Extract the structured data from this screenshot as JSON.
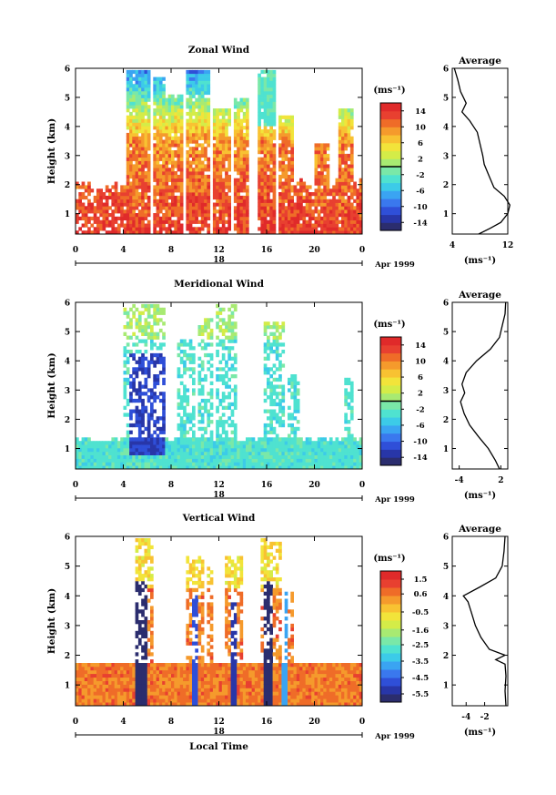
{
  "chart_data": [
    {
      "type": "heatmap",
      "title": "Zonal Wind",
      "xlabel": "",
      "ylabel": "Height (km)",
      "xlim": [
        0,
        24
      ],
      "ylim": [
        0.3,
        6
      ],
      "xticks": [
        "0",
        "4",
        "8",
        "12",
        "16",
        "20",
        "0"
      ],
      "yticks": [
        "1",
        "2",
        "3",
        "4",
        "5",
        "6"
      ],
      "date_label": "18",
      "month_label": "Apr 1999",
      "colorbar": {
        "unit": "(ms⁻¹)",
        "ticks": [
          "14",
          "10",
          "6",
          "2",
          "-2",
          "-6",
          "-10",
          "-14"
        ],
        "range": [
          -16,
          16
        ],
        "marker_value": 0
      },
      "profile": {
        "title": "Average",
        "xlabel": "(ms⁻¹)",
        "xticks": [
          "4",
          "12"
        ],
        "xlim": [
          4,
          12
        ],
        "points": [
          [
            7.8,
            0.3
          ],
          [
            9.5,
            0.5
          ],
          [
            11,
            0.7
          ],
          [
            12,
            1.0
          ],
          [
            12.3,
            1.3
          ],
          [
            11.5,
            1.6
          ],
          [
            10,
            1.9
          ],
          [
            9.3,
            2.3
          ],
          [
            8.6,
            2.7
          ],
          [
            8.4,
            3.0
          ],
          [
            8.0,
            3.4
          ],
          [
            7.6,
            3.8
          ],
          [
            6.5,
            4.2
          ],
          [
            5.4,
            4.5
          ],
          [
            6.0,
            4.8
          ],
          [
            5.2,
            5.2
          ],
          [
            4.8,
            5.6
          ],
          [
            4.3,
            6.0
          ]
        ]
      }
    },
    {
      "type": "heatmap",
      "title": "Meridional Wind",
      "xlabel": "",
      "ylabel": "Height (km)",
      "xlim": [
        0,
        24
      ],
      "ylim": [
        0.3,
        6
      ],
      "xticks": [
        "0",
        "4",
        "8",
        "12",
        "16",
        "20",
        "0"
      ],
      "yticks": [
        "1",
        "2",
        "3",
        "4",
        "5",
        "6"
      ],
      "date_label": "18",
      "month_label": "Apr 1999",
      "colorbar": {
        "unit": "(ms⁻¹)",
        "ticks": [
          "14",
          "10",
          "6",
          "2",
          "-2",
          "-6",
          "-10",
          "-14"
        ],
        "range": [
          -16,
          16
        ],
        "marker_value": 0
      },
      "profile": {
        "title": "Average",
        "xlabel": "(ms⁻¹)",
        "xticks": [
          "-4",
          "2"
        ],
        "xlim": [
          -5,
          3
        ],
        "points": [
          [
            1.8,
            0.3
          ],
          [
            1.2,
            0.6
          ],
          [
            0.2,
            1.0
          ],
          [
            -1.2,
            1.4
          ],
          [
            -2.5,
            1.8
          ],
          [
            -3.3,
            2.2
          ],
          [
            -3.8,
            2.6
          ],
          [
            -3.2,
            2.9
          ],
          [
            -3.6,
            3.2
          ],
          [
            -3.0,
            3.6
          ],
          [
            -1.5,
            4.0
          ],
          [
            0.5,
            4.4
          ],
          [
            1.8,
            4.8
          ],
          [
            2.2,
            5.2
          ],
          [
            2.6,
            5.6
          ],
          [
            2.7,
            6.0
          ]
        ]
      }
    },
    {
      "type": "heatmap",
      "title": "Vertical Wind",
      "xlabel": "Local Time",
      "ylabel": "Height (km)",
      "xlim": [
        0,
        24
      ],
      "ylim": [
        0.3,
        6
      ],
      "xticks": [
        "0",
        "4",
        "8",
        "12",
        "16",
        "20",
        "0"
      ],
      "yticks": [
        "1",
        "2",
        "3",
        "4",
        "5",
        "6"
      ],
      "date_label": "18",
      "month_label": "Apr 1999",
      "colorbar": {
        "unit": "(ms⁻¹)",
        "ticks": [
          "1.5",
          "0.6",
          "-0.5",
          "-1.6",
          "-2.5",
          "-3.5",
          "-4.5",
          "-5.5"
        ],
        "range": [
          -6,
          2
        ],
        "marker_value": null
      },
      "profile": {
        "title": "Average",
        "xlabel": "(ms⁻¹)",
        "xticks": [
          "-4",
          "-2"
        ],
        "xlim": [
          -5.5,
          0.5
        ],
        "points": [
          [
            0.3,
            0.3
          ],
          [
            0.2,
            0.8
          ],
          [
            0.3,
            1.3
          ],
          [
            0.2,
            1.7
          ],
          [
            -0.8,
            1.85
          ],
          [
            0.2,
            2.0
          ],
          [
            -1.5,
            2.2
          ],
          [
            -2.4,
            2.6
          ],
          [
            -3.0,
            3.0
          ],
          [
            -3.4,
            3.4
          ],
          [
            -3.8,
            3.8
          ],
          [
            -4.3,
            4.0
          ],
          [
            -2.5,
            4.3
          ],
          [
            -0.8,
            4.6
          ],
          [
            -0.1,
            5.0
          ],
          [
            0.1,
            5.5
          ],
          [
            0.2,
            6.0
          ]
        ]
      }
    }
  ]
}
